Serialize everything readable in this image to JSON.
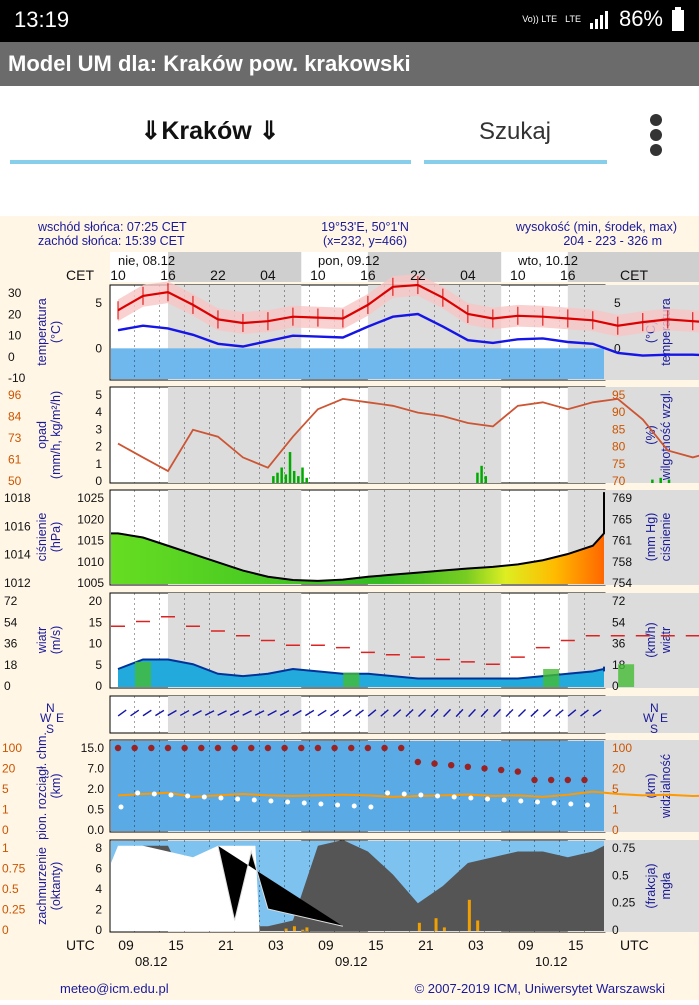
{
  "status": {
    "time": "13:19",
    "vol": "Vo)) LTE",
    "lte": "LTE",
    "battery": "86%"
  },
  "title": "Model UM dla: Kraków  pow. krakowski",
  "nav": {
    "city": "⇓Kraków ⇓",
    "search": "Szukaj"
  },
  "info": {
    "sunrise": "wschód słońca: 07:25 CET",
    "sunset": "zachód słońca: 15:39 CET",
    "coords": "19°53'E, 50°1'N",
    "grid": "(x=232, y=466)",
    "height_label": "wysokość (min, środek, max)",
    "height_values": "204 - 223 - 326 m"
  },
  "time_axis": {
    "cet_label": "CET",
    "utc_label": "UTC",
    "day_labels_top": [
      "nie, 08.12",
      "pon, 09.12",
      "wto, 10.12"
    ],
    "hours_top": [
      "10",
      "16",
      "22",
      "04",
      "10",
      "16",
      "22",
      "04",
      "10",
      "16"
    ],
    "hours_bottom": [
      "09",
      "15",
      "21",
      "03",
      "09",
      "15",
      "21",
      "03",
      "09",
      "15"
    ],
    "dates_bottom": [
      "08.12",
      "09.12",
      "10.12"
    ]
  },
  "footer": {
    "email": "meteo@icm.edu.pl",
    "copyright": "© 2007-2019 ICM, Uniwersytet Warszawski"
  },
  "colors": {
    "temp": "#dd0000",
    "dew": "#1515e6",
    "humidity": "#cc5533",
    "precip": "#00aa00",
    "wind": "#003399",
    "visibility": "#ff9900",
    "fog": "#f0a000"
  },
  "chart_data": [
    {
      "type": "line",
      "name": "temperature",
      "ylabel_left": [
        "temperatura",
        "(°C)"
      ],
      "ylabel_right": [
        "(°C)",
        "temperatura"
      ],
      "ticks_left": [
        "30",
        "20",
        "10",
        "0",
        "-10"
      ],
      "ticks_inner": [
        "5",
        "0"
      ],
      "ticks_right": [
        "5",
        "0"
      ],
      "ylim": [
        -3.5,
        7
      ],
      "x_hours": [
        0,
        3,
        6,
        9,
        12,
        15,
        18,
        21,
        24,
        27,
        30,
        33,
        36,
        39,
        42,
        45,
        48,
        51,
        54,
        57,
        60,
        63,
        66,
        69,
        72,
        75,
        78
      ],
      "series": [
        {
          "values": [
            4.2,
            5.8,
            6.2,
            4.8,
            3.2,
            2.8,
            3.0,
            3.5,
            3.4,
            3.3,
            4.8,
            6.8,
            7.0,
            5.6,
            3.8,
            3.3,
            3.6,
            3.5,
            3.3,
            3.1,
            2.5,
            2.9,
            3.2,
            3.0,
            2.8,
            2.3,
            1.4
          ]
        },
        {
          "values": [
            2.0,
            2.5,
            2.2,
            1.5,
            0.5,
            0.2,
            0.8,
            1.4,
            1.3,
            1.2,
            2.4,
            3.5,
            3.8,
            2.4,
            0.9,
            0.6,
            1.0,
            1.1,
            0.7,
            0.5,
            -0.5,
            -0.8,
            -0.7,
            -0.7,
            -0.8,
            -1.2,
            -2.2
          ]
        }
      ]
    },
    {
      "type": "line",
      "name": "precip_humidity",
      "ylabel_left": [
        "opad",
        "(mm/h, kg/m²/h)"
      ],
      "ylabel_right": [
        "(%)",
        "wilgotność wzgl."
      ],
      "ticks_far_left": [
        "96",
        "84",
        "73",
        "61",
        "50"
      ],
      "ticks_inner": [
        "5",
        "4",
        "3",
        "2",
        "1",
        "0"
      ],
      "ticks_right": [
        "95",
        "90",
        "85",
        "80",
        "75",
        "70"
      ],
      "humidity_lim": [
        70,
        95
      ],
      "humidity": [
        80,
        76,
        72,
        84,
        82,
        76,
        73,
        82,
        90,
        93,
        92,
        91,
        89,
        88,
        86,
        85,
        91,
        92,
        90,
        92,
        93,
        87,
        78,
        76,
        78,
        80,
        86
      ]
    },
    {
      "type": "area",
      "name": "pressure",
      "ylabel_left": [
        "ciśnienie",
        "(hPa)"
      ],
      "ylabel_right": [
        "(mm Hg)",
        "ciśnienie"
      ],
      "ticks_far_left": [
        "1018",
        "1016",
        "1014",
        "1012"
      ],
      "ticks_inner": [
        "1025",
        "1020",
        "1015",
        "1010",
        "1005"
      ],
      "ticks_right": [
        "769",
        "765",
        "761",
        "758",
        "754"
      ],
      "ylim": [
        1002,
        1025
      ],
      "values": [
        1014.5,
        1013.5,
        1011.5,
        1009.5,
        1007.5,
        1005.5,
        1004.0,
        1003.2,
        1003.0,
        1003.3,
        1004.0,
        1004.5,
        1005.0,
        1005.5,
        1006.0,
        1006.4,
        1007.0,
        1008.0,
        1009.5,
        1011.5,
        1014.5,
        1016.5,
        1018.5,
        1020.0,
        1021.5,
        1023.0,
        1024.5
      ]
    },
    {
      "type": "line",
      "name": "wind",
      "ylabel_left": [
        "wiatr",
        "(m/s)"
      ],
      "ylabel_right": [
        "(km/h)",
        "wiatr"
      ],
      "ticks_far_left": [
        "72",
        "54",
        "36",
        "18",
        "0"
      ],
      "ticks_inner": [
        "20",
        "15",
        "10",
        "5",
        "0"
      ],
      "ticks_right": [
        "72",
        "54",
        "36",
        "18",
        "0"
      ],
      "ylim": [
        0,
        20
      ],
      "gust": [
        13,
        14,
        15,
        13,
        12,
        11,
        10,
        9,
        9,
        8.5,
        7.5,
        7,
        6.5,
        6,
        5.5,
        5,
        6.5,
        8.5,
        10,
        11,
        11,
        11,
        11,
        11,
        11,
        11,
        11
      ],
      "mean": [
        4,
        6,
        6,
        5,
        3,
        2.5,
        3,
        4,
        3.5,
        3,
        3,
        2.5,
        2,
        2,
        2,
        2,
        2,
        2.5,
        3,
        3.5,
        4,
        4.5,
        4.5,
        4.5,
        4,
        3.5,
        3.5
      ]
    },
    {
      "type": "line",
      "name": "wind_direction",
      "compass": [
        "N",
        "W",
        "E",
        "S"
      ]
    },
    {
      "type": "scatter",
      "name": "cloud_visibility",
      "ylabel_left": [
        "pion. rozciągł. chm.",
        "(km)"
      ],
      "ylabel_right": [
        "(km)",
        "widzialność"
      ],
      "ticks_far_left": [
        "100",
        "20",
        "5",
        "1",
        "0"
      ],
      "ticks_inner": [
        "15.0",
        "7.0",
        "2.0",
        "0.5",
        "0.0"
      ],
      "ticks_right": [
        "100",
        "20",
        "5",
        "1",
        "0"
      ],
      "visibility": [
        5,
        5.5,
        6,
        4.5,
        5,
        5.5,
        5,
        4.8,
        5,
        5.2,
        5,
        4.5,
        4.8,
        5,
        5.3,
        4.8,
        5,
        4.5,
        5.2,
        6.5,
        5.5,
        5,
        5.2,
        4.8,
        5,
        5.5,
        5.2
      ]
    },
    {
      "type": "area",
      "name": "clouds_fog",
      "ylabel_left": [
        "zachmurzenie",
        "(oktanty)"
      ],
      "ylabel_right": [
        "(frakcja)",
        "mgła"
      ],
      "ticks_far_left": [
        "1",
        "0.75",
        "0.5",
        "0.25",
        "0"
      ],
      "ticks_inner": [
        "8",
        "6",
        "4",
        "2",
        "0"
      ],
      "ticks_right": [
        "0.75",
        "0.5",
        "0.25",
        "0"
      ],
      "cloud_total": [
        6.5,
        7.5,
        7.5,
        3,
        0.5,
        0.5,
        0.5,
        1,
        7.5,
        8,
        7,
        5,
        2.5,
        4,
        6,
        6.5,
        7,
        7,
        6.5,
        7,
        7.5,
        7.5,
        7.5,
        7,
        7.5,
        7.5,
        7.5
      ]
    }
  ]
}
